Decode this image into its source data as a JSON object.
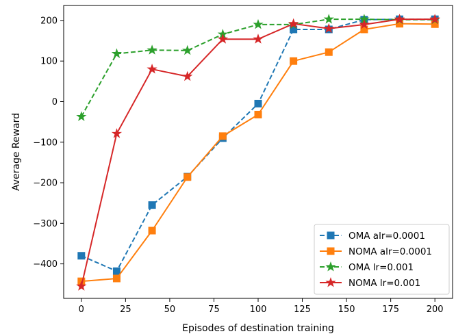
{
  "chart_data": {
    "type": "line",
    "xlabel": "Episodes of destination training",
    "ylabel": "Average Reward",
    "xlim": [
      -10,
      210
    ],
    "ylim": [
      -485,
      237
    ],
    "xticks": [
      0,
      25,
      50,
      75,
      100,
      125,
      150,
      175,
      200
    ],
    "yticks": [
      -400,
      -300,
      -200,
      -100,
      0,
      100,
      200
    ],
    "xtick_labels": [
      "0",
      "25",
      "50",
      "75",
      "100",
      "125",
      "150",
      "175",
      "200"
    ],
    "ytick_labels": [
      "−400",
      "−300",
      "−200",
      "−100",
      "0",
      "100",
      "200"
    ],
    "grid": false,
    "legend_position": "lower-right",
    "x": [
      0,
      20,
      40,
      60,
      80,
      100,
      120,
      140,
      160,
      180,
      200
    ],
    "series": [
      {
        "name": "OMA alr=0.0001",
        "color": "#1f77b4",
        "linestyle": "dashed",
        "marker": "square",
        "values": [
          -380,
          -418,
          -255,
          -185,
          -90,
          -5,
          178,
          178,
          202,
          203,
          203
        ]
      },
      {
        "name": "NOMA alr=0.0001",
        "color": "#ff7f0e",
        "linestyle": "solid",
        "marker": "square",
        "values": [
          -443,
          -436,
          -318,
          -186,
          -85,
          -32,
          100,
          122,
          178,
          192,
          191
        ]
      },
      {
        "name": "OMA lr=0.001",
        "color": "#2ca02c",
        "linestyle": "dashed",
        "marker": "star",
        "values": [
          -37,
          118,
          127,
          126,
          166,
          190,
          190,
          203,
          203,
          202,
          202
        ]
      },
      {
        "name": "NOMA lr=0.001",
        "color": "#d62728",
        "linestyle": "solid",
        "marker": "star",
        "values": [
          -455,
          -79,
          80,
          62,
          154,
          154,
          192,
          180,
          190,
          203,
          203
        ]
      }
    ]
  }
}
